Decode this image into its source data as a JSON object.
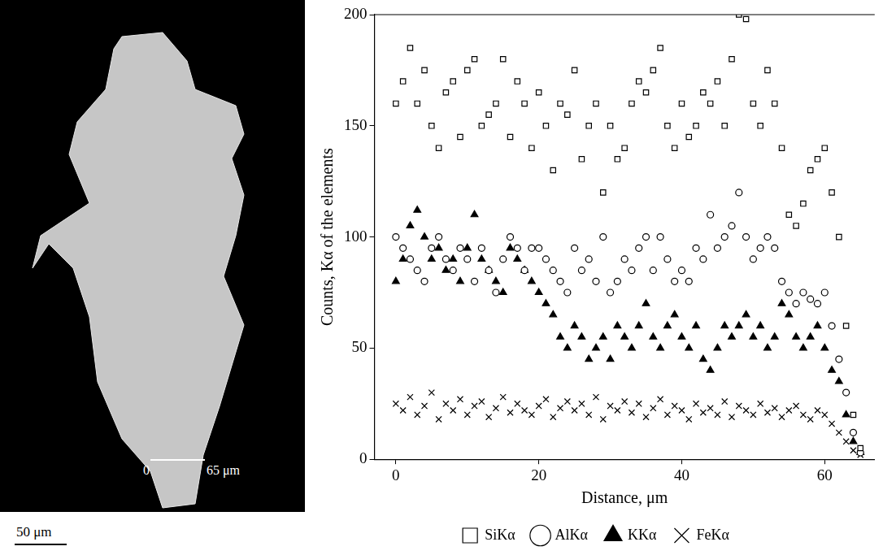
{
  "chart_data": {
    "type": "scatter",
    "x_label": "Distance, μm",
    "y_label": "Counts, Kα of the elements",
    "x": [
      0,
      1,
      2,
      3,
      4,
      5,
      6,
      7,
      8,
      9,
      10,
      11,
      12,
      13,
      14,
      15,
      16,
      17,
      18,
      19,
      20,
      21,
      22,
      23,
      24,
      25,
      26,
      27,
      28,
      29,
      30,
      31,
      32,
      33,
      34,
      35,
      36,
      37,
      38,
      39,
      40,
      41,
      42,
      43,
      44,
      45,
      46,
      47,
      48,
      49,
      50,
      51,
      52,
      53,
      54,
      55,
      56,
      57,
      58,
      59,
      60,
      61,
      62,
      63,
      64,
      65
    ],
    "series": [
      {
        "name": "SiKα",
        "color": "#000000",
        "marker": "open_square",
        "values": [
          160,
          170,
          185,
          160,
          175,
          150,
          140,
          165,
          170,
          145,
          175,
          180,
          150,
          155,
          160,
          180,
          145,
          170,
          160,
          140,
          165,
          150,
          130,
          160,
          155,
          175,
          135,
          150,
          160,
          120,
          150,
          135,
          140,
          160,
          170,
          165,
          175,
          185,
          150,
          140,
          160,
          145,
          150,
          165,
          160,
          170,
          150,
          180,
          200,
          198,
          160,
          150,
          175,
          160,
          140,
          110,
          105,
          115,
          130,
          135,
          140,
          120,
          100,
          60,
          20,
          5
        ]
      },
      {
        "name": "AlKα",
        "color": "#000000",
        "marker": "open_circle",
        "values": [
          100,
          95,
          90,
          85,
          80,
          95,
          100,
          90,
          85,
          95,
          90,
          80,
          95,
          85,
          75,
          90,
          100,
          95,
          85,
          95,
          95,
          90,
          85,
          80,
          75,
          95,
          85,
          90,
          80,
          100,
          75,
          80,
          90,
          85,
          95,
          100,
          85,
          100,
          90,
          80,
          85,
          80,
          95,
          90,
          110,
          95,
          100,
          105,
          120,
          100,
          90,
          95,
          100,
          95,
          80,
          75,
          70,
          75,
          72,
          70,
          75,
          60,
          45,
          30,
          12,
          3
        ]
      },
      {
        "name": "KKα",
        "color": "#000000",
        "marker": "filled_triangle",
        "values": [
          80,
          90,
          105,
          112,
          100,
          90,
          95,
          85,
          90,
          80,
          95,
          110,
          90,
          85,
          80,
          75,
          95,
          90,
          85,
          80,
          75,
          70,
          65,
          55,
          50,
          60,
          55,
          45,
          50,
          55,
          45,
          60,
          55,
          50,
          60,
          70,
          55,
          50,
          60,
          65,
          55,
          50,
          60,
          45,
          40,
          50,
          60,
          55,
          60,
          65,
          55,
          60,
          50,
          55,
          70,
          65,
          55,
          50,
          55,
          60,
          50,
          40,
          35,
          20,
          8,
          3
        ]
      },
      {
        "name": "FeKα",
        "color": "#000000",
        "marker": "x",
        "values": [
          25,
          22,
          28,
          20,
          24,
          30,
          18,
          25,
          22,
          27,
          20,
          24,
          26,
          19,
          23,
          28,
          21,
          25,
          22,
          20,
          24,
          27,
          19,
          23,
          26,
          22,
          25,
          20,
          28,
          18,
          24,
          22,
          26,
          21,
          25,
          19,
          23,
          27,
          20,
          24,
          22,
          18,
          25,
          21,
          23,
          20,
          26,
          19,
          24,
          22,
          20,
          25,
          21,
          23,
          19,
          22,
          24,
          20,
          18,
          22,
          20,
          16,
          12,
          8,
          4,
          2
        ]
      }
    ],
    "xlim": [
      -3,
      67
    ],
    "xticks": [
      0,
      20,
      40,
      60
    ],
    "ylim": [
      0,
      200
    ],
    "yticks": [
      0,
      50,
      100,
      150,
      200
    ],
    "grid": false,
    "legend": "bottom"
  },
  "image": {
    "scan_start_label": "0",
    "scan_end_label": "65 μm",
    "scale_bar_label": "50 μm"
  }
}
